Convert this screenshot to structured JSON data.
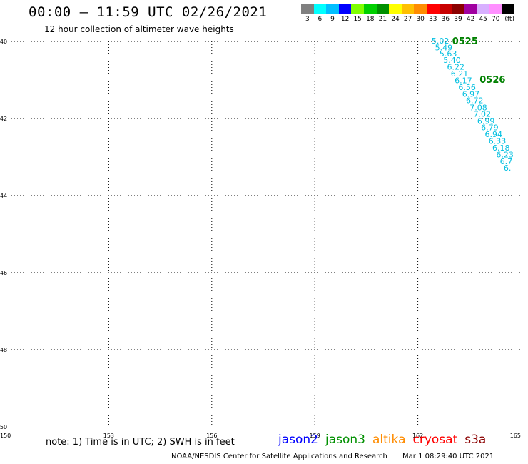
{
  "title": "00:00 – 11:59 UTC 02/26/2021",
  "subtitle": "12 hour collection of altimeter wave heights",
  "colors": {
    "orbit_label": "#008000",
    "swh_label": "#00bfe0"
  },
  "legend": {
    "unit": "(ft)",
    "entries": [
      {
        "label": "3",
        "color": "#808080"
      },
      {
        "label": "6",
        "color": "#00ffff"
      },
      {
        "label": "9",
        "color": "#00bfff"
      },
      {
        "label": "12",
        "color": "#0000ff"
      },
      {
        "label": "15",
        "color": "#7fff00"
      },
      {
        "label": "18",
        "color": "#00d000"
      },
      {
        "label": "21",
        "color": "#009000"
      },
      {
        "label": "24",
        "color": "#ffff00"
      },
      {
        "label": "27",
        "color": "#ffc000"
      },
      {
        "label": "30",
        "color": "#ff8c00"
      },
      {
        "label": "33",
        "color": "#ff0000"
      },
      {
        "label": "36",
        "color": "#c80000"
      },
      {
        "label": "39",
        "color": "#8b0000"
      },
      {
        "label": "42",
        "color": "#a000a0"
      },
      {
        "label": "45",
        "color": "#d8b0ff"
      },
      {
        "label": "70",
        "color": "#ff90ff"
      },
      {
        "label": "",
        "color": "#000000"
      }
    ]
  },
  "chart_data": {
    "type": "scatter",
    "xlim": [
      150,
      165
    ],
    "ylim": [
      -50,
      -40
    ],
    "x_ticks": [
      "150",
      "153",
      "156",
      "159",
      "162",
      "165"
    ],
    "y_ticks": [
      "-40",
      "-42",
      "-44",
      "-46",
      "-48",
      "-50"
    ],
    "grid": true,
    "orbit_labels": [
      {
        "text": "0525",
        "x": 163.0,
        "y": -40.0
      },
      {
        "text": "0526",
        "x": 163.8,
        "y": -41.0
      }
    ],
    "swh_points": [
      {
        "x": 162.4,
        "y": -40.0,
        "swh": "5.02"
      },
      {
        "x": 162.5,
        "y": -40.18,
        "swh": "5.49"
      },
      {
        "x": 162.63,
        "y": -40.33,
        "swh": "5.63"
      },
      {
        "x": 162.74,
        "y": -40.5,
        "swh": "5.40"
      },
      {
        "x": 162.85,
        "y": -40.68,
        "swh": "6.22"
      },
      {
        "x": 162.96,
        "y": -40.85,
        "swh": "6.21"
      },
      {
        "x": 163.07,
        "y": -41.03,
        "swh": "6.17"
      },
      {
        "x": 163.18,
        "y": -41.2,
        "swh": "6.56"
      },
      {
        "x": 163.29,
        "y": -41.38,
        "swh": "6.97"
      },
      {
        "x": 163.4,
        "y": -41.55,
        "swh": "6.72"
      },
      {
        "x": 163.51,
        "y": -41.73,
        "swh": "7.08"
      },
      {
        "x": 163.62,
        "y": -41.9,
        "swh": "7.02"
      },
      {
        "x": 163.73,
        "y": -42.08,
        "swh": "6.99"
      },
      {
        "x": 163.84,
        "y": -42.25,
        "swh": "6.79"
      },
      {
        "x": 163.95,
        "y": -42.43,
        "swh": "6.94"
      },
      {
        "x": 164.06,
        "y": -42.6,
        "swh": "6.33"
      },
      {
        "x": 164.17,
        "y": -42.78,
        "swh": "6.18"
      },
      {
        "x": 164.28,
        "y": -42.95,
        "swh": "6.23"
      },
      {
        "x": 164.39,
        "y": -43.13,
        "swh": "6.7"
      },
      {
        "x": 164.5,
        "y": -43.3,
        "swh": "6."
      }
    ]
  },
  "note": "note: 1) Time is in UTC; 2) SWH is in feet",
  "satellites": [
    {
      "name": "jason2",
      "color": "#0000ff"
    },
    {
      "name": "jason3",
      "color": "#009000"
    },
    {
      "name": "altika",
      "color": "#ff8c00"
    },
    {
      "name": "cryosat",
      "color": "#ff0000"
    },
    {
      "name": "s3a",
      "color": "#8b0000"
    }
  ],
  "footer": {
    "credit": "NOAA/NESDIS Center for Satellite Applications and Research",
    "timestamp": "Mar  1 08:29:40 UTC 2021"
  }
}
